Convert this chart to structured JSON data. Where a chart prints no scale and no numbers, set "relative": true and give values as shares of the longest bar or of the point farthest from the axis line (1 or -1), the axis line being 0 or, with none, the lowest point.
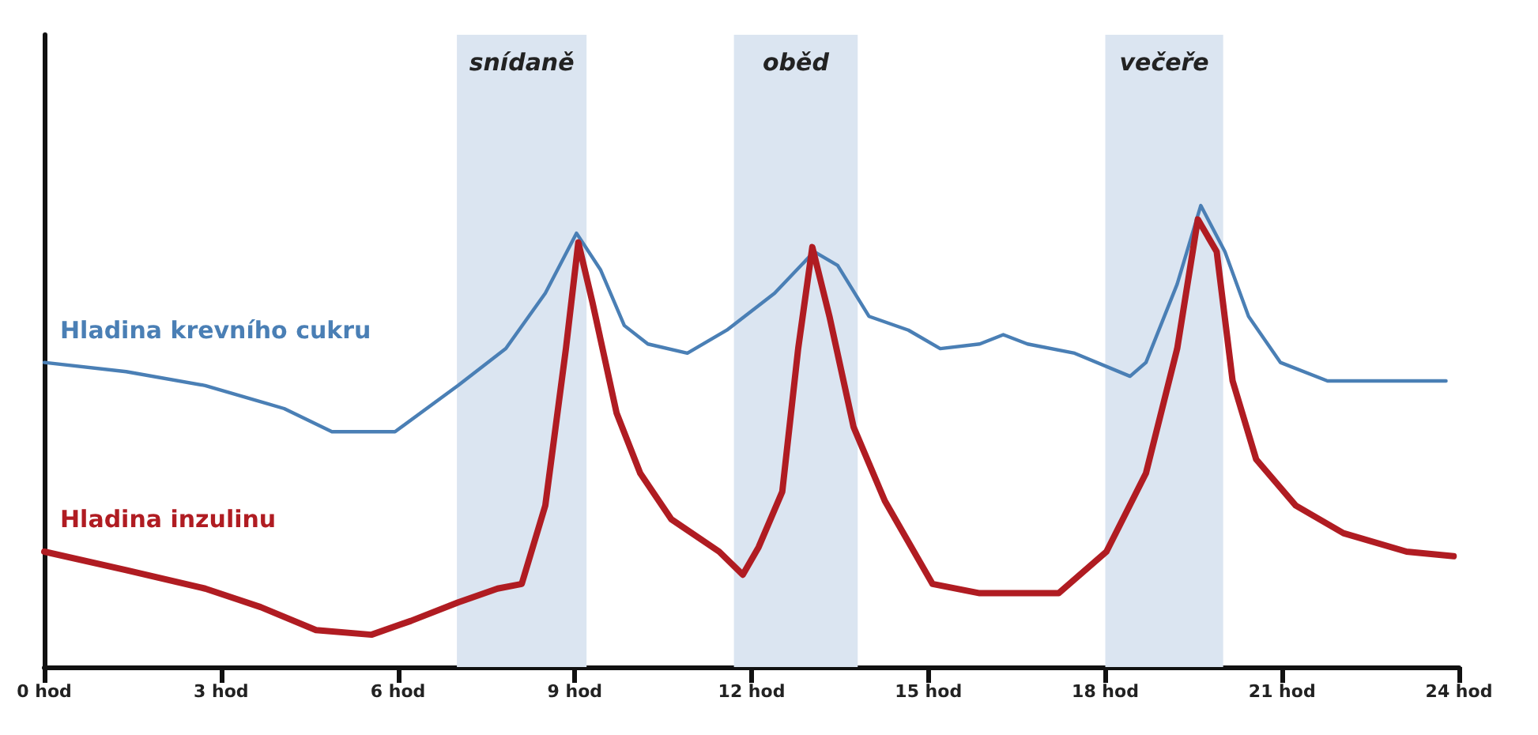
{
  "chart_data": {
    "type": "line",
    "relative": true,
    "xlim": [
      0,
      24
    ],
    "xticks": [
      {
        "value": 0,
        "label": "0 hod"
      },
      {
        "value": 3,
        "label": "3 hod"
      },
      {
        "value": 6,
        "label": "6 hod"
      },
      {
        "value": 9,
        "label": "9 hod"
      },
      {
        "value": 12,
        "label": "12 hod"
      },
      {
        "value": 15,
        "label": "15 hod"
      },
      {
        "value": 18,
        "label": "18 hod"
      },
      {
        "value": 21,
        "label": "21 hod"
      },
      {
        "value": 24,
        "label": "24 hod"
      }
    ],
    "grid": false,
    "legend": false,
    "marker": "none",
    "line_style": "solid",
    "bands": [
      {
        "axis": "x",
        "from": 7,
        "to": 9.2,
        "label": "snídaně",
        "color": "#dbe5f1"
      },
      {
        "axis": "x",
        "from": 11.7,
        "to": 13.8,
        "label": "oběd",
        "color": "#dbe5f1"
      },
      {
        "axis": "x",
        "from": 18,
        "to": 20,
        "label": "večeře",
        "color": "#dbe5f1"
      }
    ],
    "series": [
      {
        "name": "Hladina krevního cukru",
        "color": "#4a7fb5",
        "x": [
          0,
          1.39,
          2.73,
          4.07,
          4.88,
          5.95,
          7.02,
          7.83,
          8.5,
          9.03,
          9.44,
          9.84,
          10.24,
          10.91,
          11.58,
          12.39,
          13.06,
          13.46,
          13.99,
          14.66,
          15.2,
          15.87,
          16.27,
          16.68,
          17.48,
          18.42,
          18.69,
          19.22,
          19.62,
          20.03,
          20.43,
          20.97,
          21.77,
          22.84,
          23.78
        ],
        "values": [
          0.66,
          0.64,
          0.61,
          0.56,
          0.51,
          0.51,
          0.61,
          0.69,
          0.81,
          0.94,
          0.86,
          0.74,
          0.7,
          0.68,
          0.73,
          0.81,
          0.9,
          0.87,
          0.76,
          0.73,
          0.69,
          0.7,
          0.72,
          0.7,
          0.68,
          0.63,
          0.66,
          0.83,
          1,
          0.9,
          0.76,
          0.66,
          0.62,
          0.62,
          0.62
        ]
      },
      {
        "name": "Hladina inzulinu",
        "color": "#b01c22",
        "x": [
          0,
          1.39,
          2.73,
          3.67,
          4.61,
          5.55,
          6.22,
          7.02,
          7.69,
          8.1,
          8.5,
          8.85,
          9.06,
          9.3,
          9.71,
          10.11,
          10.64,
          11.45,
          11.85,
          12.12,
          12.52,
          12.79,
          13.03,
          13.32,
          13.73,
          14.26,
          15.07,
          15.87,
          17.21,
          18.02,
          18.69,
          19.22,
          19.57,
          19.89,
          20.16,
          20.56,
          21.23,
          22.04,
          23.11,
          23.91
        ],
        "values": [
          0.25,
          0.21,
          0.17,
          0.13,
          0.08,
          0.07,
          0.1,
          0.14,
          0.17,
          0.18,
          0.35,
          0.69,
          0.92,
          0.79,
          0.55,
          0.42,
          0.32,
          0.25,
          0.2,
          0.26,
          0.38,
          0.69,
          0.91,
          0.76,
          0.52,
          0.36,
          0.18,
          0.16,
          0.16,
          0.25,
          0.42,
          0.69,
          0.97,
          0.9,
          0.62,
          0.45,
          0.35,
          0.29,
          0.25,
          0.24
        ]
      }
    ]
  }
}
